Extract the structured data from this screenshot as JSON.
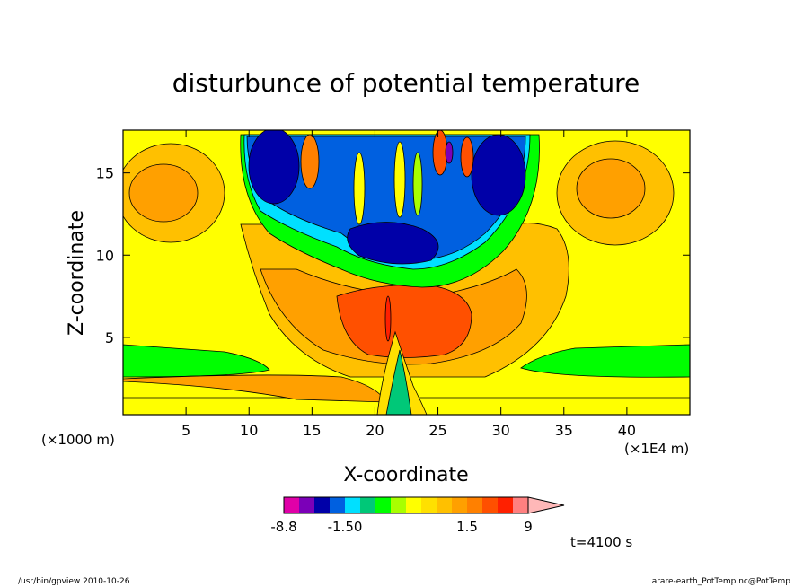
{
  "chart_data": {
    "type": "heatmap",
    "title": "disturbunce of potential temperature",
    "xlabel": "X-coordinate",
    "ylabel": "Z-coordinate",
    "x_unit_left": "(×1000 m)",
    "x_unit_right": "(×1E4 m)",
    "xlim": [
      0,
      45
    ],
    "ylim": [
      0.3,
      17.6
    ],
    "x_ticks": [
      5,
      10,
      15,
      20,
      25,
      30,
      35,
      40
    ],
    "y_ticks": [
      5,
      10,
      15
    ],
    "time_label": "t=4100 s",
    "colorbar": {
      "levels": [
        -8.8,
        -6.8,
        -4.8,
        -3.0,
        -1.5,
        -1.0,
        -0.6,
        -0.3,
        0.0,
        0.3,
        0.6,
        1.0,
        1.5,
        3.0,
        5.4,
        7.2,
        9.0
      ],
      "colors": [
        "#e000a8",
        "#7b00b8",
        "#0000a8",
        "#0060e0",
        "#00e0ff",
        "#00c878",
        "#00ff00",
        "#a8ff00",
        "#ffff00",
        "#ffe000",
        "#ffc000",
        "#ffa000",
        "#ff8000",
        "#ff5000",
        "#ff2000",
        "#ff8080",
        "#ffb8b8"
      ],
      "tick_labels": [
        "-8.8",
        "-1.50",
        "1.5",
        "9"
      ]
    }
  },
  "footer": {
    "left": "/usr/bin/gpview   2010-10-26",
    "right": "arare-earth_PotTemp.nc@PotTemp"
  }
}
